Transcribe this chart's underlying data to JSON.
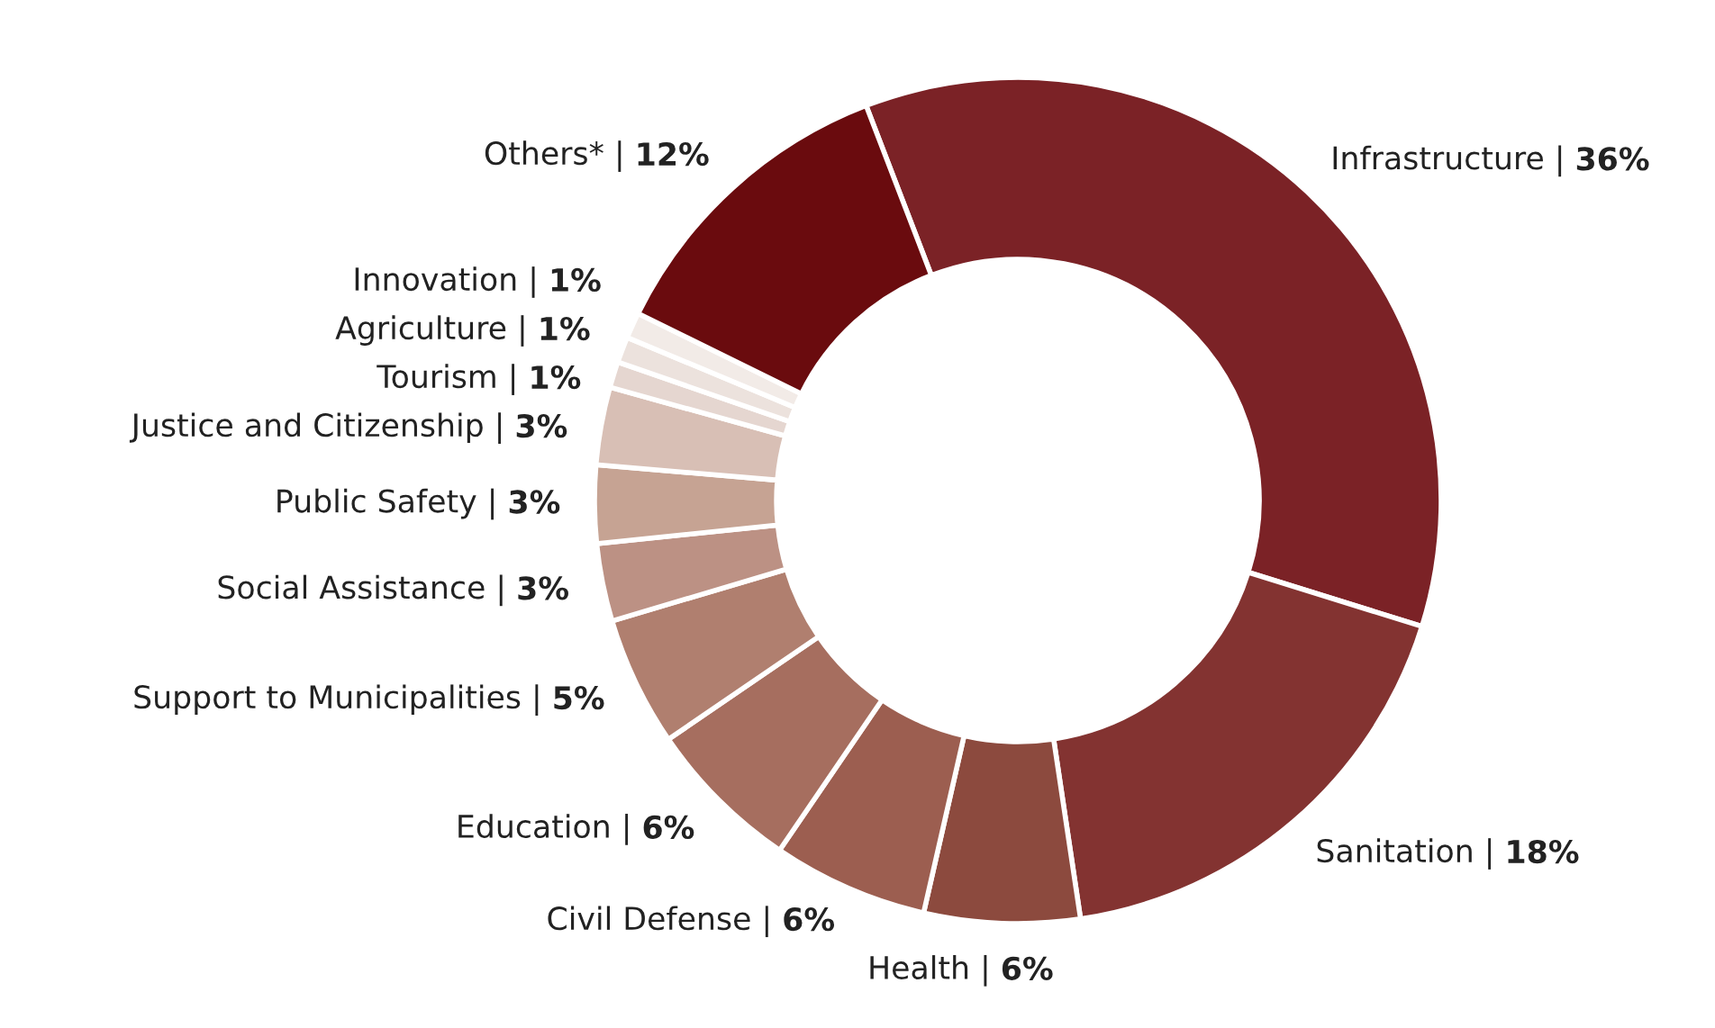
{
  "chart_data": {
    "type": "donut",
    "categories": [
      "Infrastructure |",
      "Sanitation |",
      "Health |",
      "Civil Defense |",
      "Education |",
      "Support to Municipalities |",
      "Social Assistance |",
      "Public Safety |",
      "Justice and Citizenship |",
      "Tourism |",
      "Agriculture |",
      "Innovation |",
      "Others* |"
    ],
    "values": [
      36,
      18,
      6,
      6,
      6,
      5,
      3,
      3,
      3,
      1,
      1,
      1,
      12
    ],
    "value_labels": [
      "36%",
      "18%",
      "6%",
      "6%",
      "6%",
      "5%",
      "3%",
      "3%",
      "3%",
      "1%",
      "1%",
      "1%",
      "12%"
    ],
    "colors": [
      "#7b2226",
      "#833331",
      "#8c4a3e",
      "#9c5e50",
      "#a66e5f",
      "#b07f6f",
      "#bc9184",
      "#c6a393",
      "#d8bfb5",
      "#e5d6d0",
      "#ece2dd",
      "#f2ebe7",
      "#6a0b0e"
    ],
    "legend": false
  }
}
